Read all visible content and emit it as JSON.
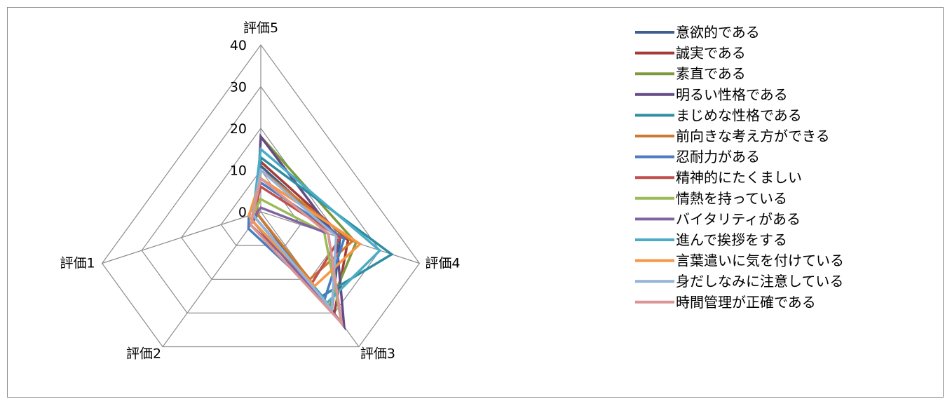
{
  "chart_data": {
    "type": "radar",
    "axes": [
      "評価1",
      "評価2",
      "評価3",
      "評価4",
      "評価5"
    ],
    "rlim": [
      0,
      40
    ],
    "ticks": [
      0,
      10,
      20,
      30,
      40
    ],
    "grid": true,
    "legend_position": "right",
    "series": [
      {
        "name": "意欲的である",
        "color": "#3f5f8f",
        "values": [
          2,
          2,
          29,
          20,
          11
        ]
      },
      {
        "name": "誠実である",
        "color": "#a13c3a",
        "values": [
          1,
          1,
          30,
          22,
          12
        ]
      },
      {
        "name": "素直である",
        "color": "#7d9a3c",
        "values": [
          1,
          1,
          28,
          24,
          18
        ]
      },
      {
        "name": "明るい性格である",
        "color": "#644a87",
        "values": [
          1,
          1,
          34,
          19,
          18
        ]
      },
      {
        "name": "まじめな性格である",
        "color": "#2f8ea0",
        "values": [
          1,
          2,
          25,
          33,
          13
        ]
      },
      {
        "name": "前向きな考え方ができる",
        "color": "#d07a2e",
        "values": [
          1,
          1,
          20,
          23,
          10
        ]
      },
      {
        "name": "忍耐力がある",
        "color": "#4a7cbf",
        "values": [
          3,
          5,
          26,
          21,
          7
        ]
      },
      {
        "name": "精神的にたくましい",
        "color": "#c0504d",
        "values": [
          2,
          4,
          21,
          20,
          6
        ]
      },
      {
        "name": "情熱を持っている",
        "color": "#9bbb59",
        "values": [
          2,
          3,
          33,
          16,
          3
        ]
      },
      {
        "name": "バイタリティがある",
        "color": "#8064a2",
        "values": [
          1,
          3,
          33,
          17,
          1
        ]
      },
      {
        "name": "進んで挨拶をする",
        "color": "#4bacc6",
        "values": [
          2,
          2,
          27,
          30,
          15
        ]
      },
      {
        "name": "言葉遣いに気を付けている",
        "color": "#f79646",
        "values": [
          3,
          3,
          22,
          25,
          8
        ]
      },
      {
        "name": "身だしなみに注意している",
        "color": "#95b3d7",
        "values": [
          2,
          2,
          29,
          19,
          10
        ]
      },
      {
        "name": "時間管理が正確である",
        "color": "#d99694",
        "values": [
          2,
          4,
          33,
          17,
          8
        ]
      }
    ]
  }
}
